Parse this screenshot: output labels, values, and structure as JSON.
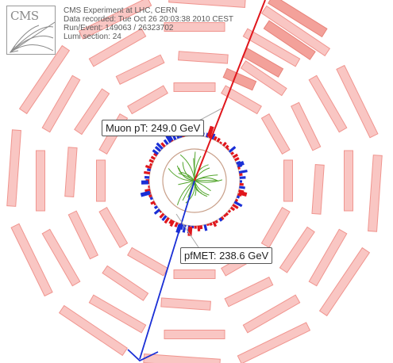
{
  "event_info": {
    "logo_text": "CMS",
    "experiment": "CMS Experiment at LHC, CERN",
    "data_recorded": "Data recorded: Tue Oct 26 20:03:38 2010 CEST",
    "run_event": "Run/Event: 149063 / 26323702",
    "lumi_section": "Lumi section: 24"
  },
  "annotations": {
    "muon": "Muon pT: 249.0 GeV",
    "met": "pfMET: 238.6 GeV"
  },
  "colors": {
    "muon_track": "#e0161c",
    "met_arrow": "#1a2fd6",
    "muon_chamber_fill": "#f9c6c3",
    "muon_chamber_stroke": "#f0958f",
    "hit_chamber_fill": "#f3a19a",
    "ecal_deposit": "#e0161c",
    "hcal_deposit": "#1a2fd6",
    "tracks": "#52a52c",
    "ring": "#c9a08a"
  }
}
